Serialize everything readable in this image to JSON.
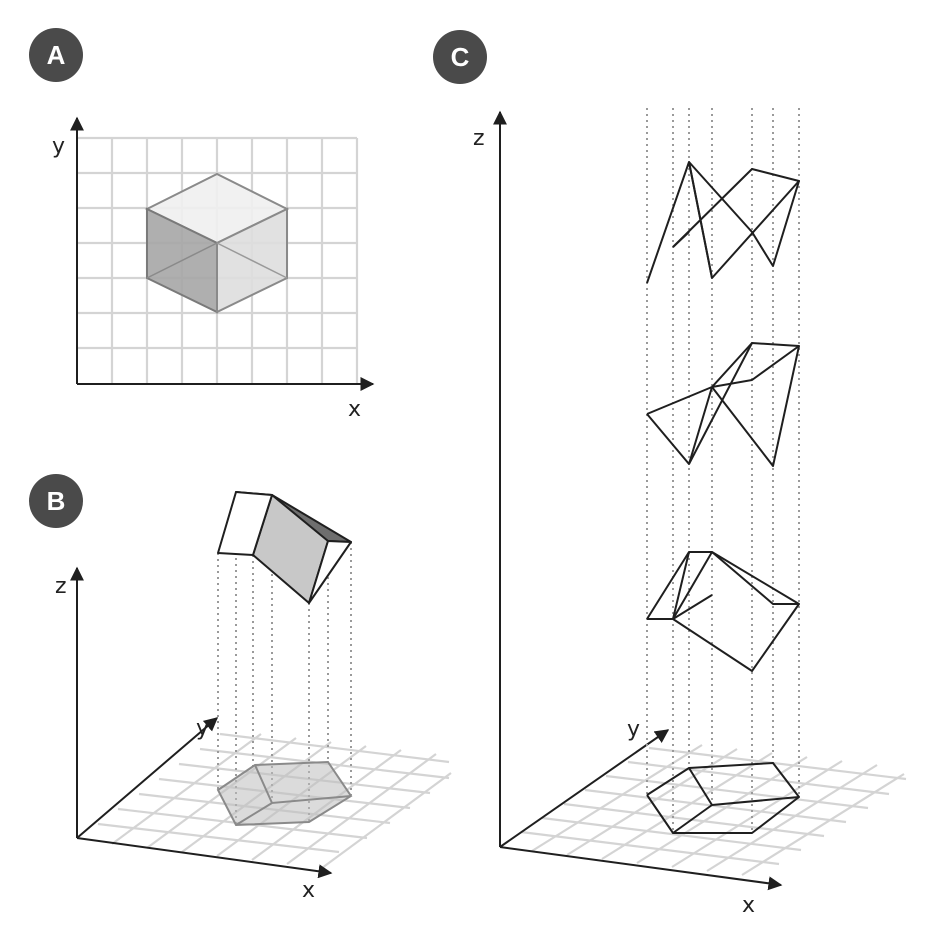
{
  "panels": {
    "a": {
      "badge": "A",
      "x_label": "x",
      "y_label": "y"
    },
    "b": {
      "badge": "B",
      "x_label": "x",
      "y_label": "y",
      "z_label": "z"
    },
    "c": {
      "badge": "C",
      "x_label": "x",
      "y_label": "y",
      "z_label": "z"
    }
  },
  "colors": {
    "badge": "#4a4a4a",
    "grid": "#d4d4d4",
    "line": "#1f1f1f",
    "projection": "#9a9a9a",
    "shade_light": "#eeeeee",
    "shade_mid": "#d9d9d9",
    "shade_dark": "#a6a6a6"
  }
}
